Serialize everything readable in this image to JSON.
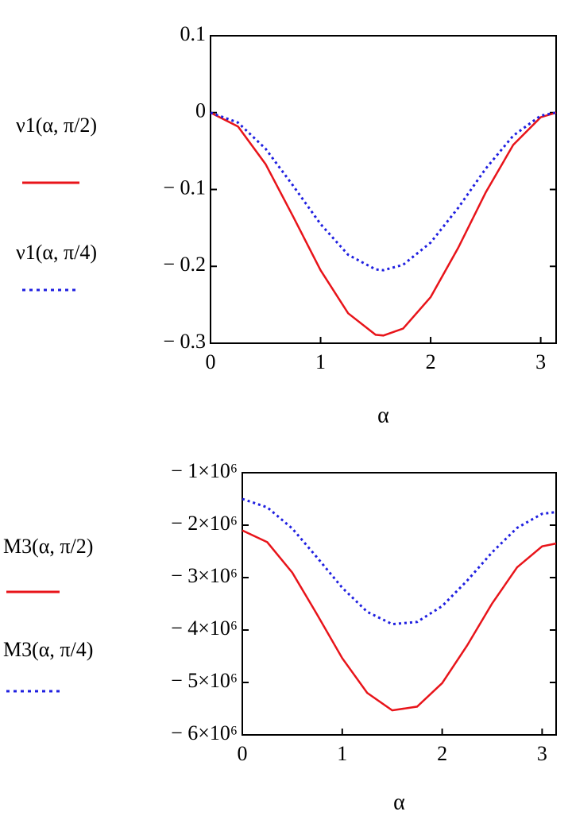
{
  "chart_data": [
    {
      "type": "line",
      "x_label": "α",
      "x": [
        0,
        0.25,
        0.5,
        0.75,
        1,
        1.25,
        1.5,
        1.571,
        1.75,
        2,
        2.25,
        2.5,
        2.75,
        3,
        3.14
      ],
      "series": [
        {
          "name": "ν1(α, π/2)",
          "color": "#e8141a",
          "line_style": "solid",
          "values": [
            0,
            -0.018,
            -0.067,
            -0.135,
            -0.205,
            -0.261,
            -0.289,
            -0.29,
            -0.281,
            -0.24,
            -0.176,
            -0.104,
            -0.042,
            -0.006,
            0
          ]
        },
        {
          "name": "ν1(α, π/4)",
          "color": "#1f1fe0",
          "line_style": "dotted",
          "values": [
            0,
            -0.013,
            -0.047,
            -0.095,
            -0.145,
            -0.185,
            -0.204,
            -0.205,
            -0.198,
            -0.169,
            -0.124,
            -0.073,
            -0.03,
            -0.004,
            0
          ]
        }
      ],
      "xlim": [
        0,
        3.14
      ],
      "xticks": [
        0,
        1,
        2,
        3
      ],
      "ylim": [
        -0.3,
        0.1
      ],
      "yticks": [
        {
          "value": 0.1,
          "label": "0.1"
        },
        0,
        {
          "value": -0.1,
          "label": "− 0.1"
        },
        {
          "value": -0.2,
          "label": "− 0.2"
        },
        {
          "value": -0.3,
          "label": "− 0.3"
        }
      ],
      "grid": false
    },
    {
      "type": "line",
      "x_label": "α",
      "x": [
        0,
        0.25,
        0.5,
        0.75,
        1,
        1.25,
        1.5,
        1.75,
        2,
        2.25,
        2.5,
        2.75,
        3,
        3.14
      ],
      "series": [
        {
          "name": "M3(α, π/2)",
          "color": "#e8141a",
          "line_style": "solid",
          "values": [
            -2100000,
            -2324000,
            -2905000,
            -3707000,
            -4538000,
            -5199000,
            -5532000,
            -5461000,
            -5012000,
            -4295000,
            -3492000,
            -2805000,
            -2405000,
            -2350000
          ]
        },
        {
          "name": "M3(α, π/4)",
          "color": "#1f1fe0",
          "line_style": "dotted",
          "values": [
            -1500000,
            -1660000,
            -2064000,
            -2619000,
            -3194000,
            -3653000,
            -3888000,
            -3845000,
            -3544000,
            -3059000,
            -2516000,
            -2052000,
            -1784000,
            -1750000
          ]
        }
      ],
      "xlim": [
        0,
        3.14
      ],
      "xticks": [
        0,
        1,
        2,
        3
      ],
      "ylim": [
        -6000000,
        -1000000
      ],
      "yticks": [
        {
          "value": -1000000,
          "label": "− 1×10⁶"
        },
        {
          "value": -2000000,
          "label": "− 2×10⁶"
        },
        {
          "value": -3000000,
          "label": "− 3×10⁶"
        },
        {
          "value": -4000000,
          "label": "− 4×10⁶"
        },
        {
          "value": -5000000,
          "label": "− 5×10⁶"
        },
        {
          "value": -6000000,
          "label": "− 6×10⁶"
        }
      ],
      "grid": false
    }
  ]
}
